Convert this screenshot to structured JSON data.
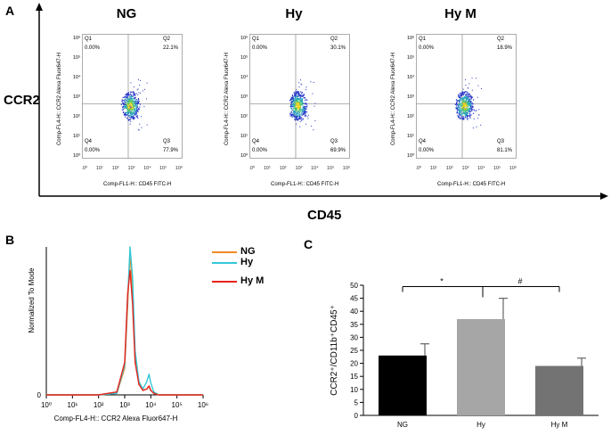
{
  "panel_labels": {
    "a": "A",
    "b": "B",
    "c": "C"
  },
  "panel_a": {
    "y_axis_label": "CCR2",
    "x_axis_label": "CD45",
    "plots": [
      {
        "title": "NG",
        "q1": "0.00%",
        "q2": "22.1%",
        "q3": "77.9%",
        "q4": "0.00%"
      },
      {
        "title": "Hy",
        "q1": "0.00%",
        "q2": "30.1%",
        "q3": "69.9%",
        "q4": "0.00%"
      },
      {
        "title": "Hy M",
        "q1": "0.00%",
        "q2": "18.9%",
        "q3": "81.1%",
        "q4": "0.00%"
      }
    ],
    "quadrant_names": {
      "q1": "Q1",
      "q2": "Q2",
      "q3": "Q3",
      "q4": "Q4"
    },
    "plot_y_label": "Comp-FL4-H:: CCR2 Alexa Fluor647-H",
    "plot_x_label": "Comp-FL1-H:: CD45 FITC-H",
    "tick_labels": [
      "10⁰",
      "10¹",
      "10²",
      "10³",
      "10⁴",
      "10⁵",
      "10⁶"
    ]
  },
  "chart_data": [
    {
      "type": "line",
      "title": "",
      "xlabel": "Comp-FL4-H:: CCR2 Alexa Fluor647-H",
      "ylabel": "Normalized To Mode",
      "x_scale": "log10",
      "xlim": [
        1,
        1000000
      ],
      "x_ticks": [
        "10⁰",
        "10¹",
        "10²",
        "10³",
        "10⁴",
        "10⁵",
        "10⁶"
      ],
      "y_tick": "0",
      "x": [
        1,
        100,
        500,
        1000,
        1300,
        1600,
        2000,
        2500,
        3500,
        5000,
        7000,
        8500,
        10000,
        13000,
        20000,
        1000000
      ],
      "series": [
        {
          "name": "NG",
          "color": "#f28a24",
          "values": [
            0,
            0,
            1,
            18,
            60,
            96,
            70,
            25,
            8,
            3,
            4,
            6,
            3,
            1,
            0,
            0
          ]
        },
        {
          "name": "Hy",
          "color": "#33c7d8",
          "values": [
            0,
            0,
            1,
            20,
            65,
            100,
            80,
            30,
            9,
            4,
            9,
            14,
            8,
            2,
            0,
            0
          ]
        },
        {
          "name": "Hy M",
          "color": "#e8231b",
          "values": [
            0,
            0,
            2,
            22,
            68,
            84,
            62,
            22,
            7,
            3,
            4,
            6,
            3,
            1,
            0,
            0
          ]
        }
      ]
    },
    {
      "type": "bar",
      "title": "",
      "xlabel": "",
      "ylabel": "CCR2⁺/CD11b⁺CD45⁺",
      "categories": [
        "NG",
        "Hy",
        "Hy M"
      ],
      "values": [
        23,
        37,
        19
      ],
      "errors": [
        4.5,
        8,
        3
      ],
      "colors": [
        "#000000",
        "#a6a6a6",
        "#737373"
      ],
      "ylim": [
        0,
        50
      ],
      "y_ticks": [
        0,
        5,
        10,
        15,
        20,
        25,
        30,
        35,
        40,
        45,
        50
      ],
      "significance": [
        {
          "from": "NG",
          "to": "Hy",
          "label": "*"
        },
        {
          "from": "Hy",
          "to": "Hy M",
          "label": "#"
        }
      ]
    }
  ]
}
